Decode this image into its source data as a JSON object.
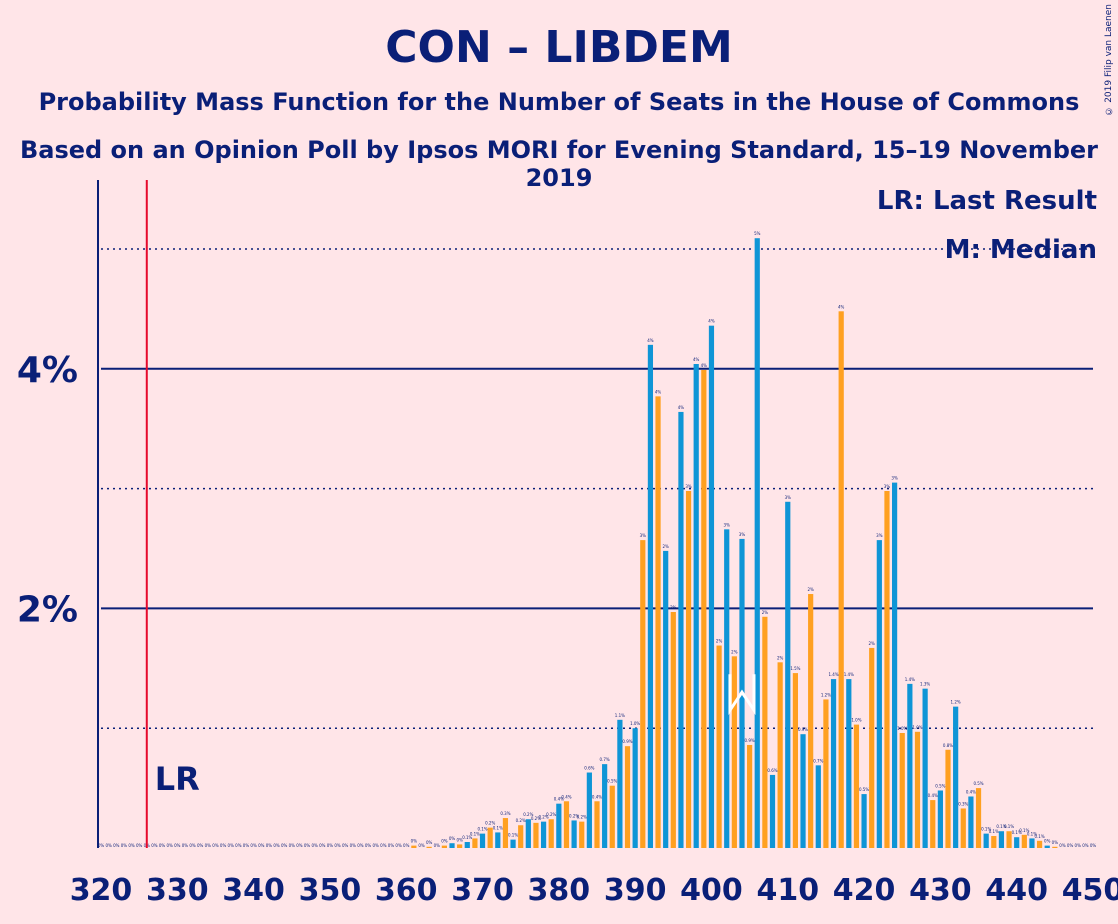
{
  "title": "CON – LIBDEM",
  "subtitle": "Probability Mass Function for the Number of Seats in the House of Commons",
  "subtitle2": "Based on an Opinion Poll by Ipsos MORI for Evening Standard, 15–19 November 2019",
  "copyright": "© 2019 Filip van Laenen",
  "legend": {
    "lr": "LR: Last Result",
    "m": "M: Median"
  },
  "colors": {
    "background": "#FFE5E8",
    "text": "#0A1F77",
    "series_a": "#0F95D6",
    "series_b": "#FFA020",
    "last_result": "#E6092C"
  },
  "chart_data": {
    "type": "bar",
    "x_range": [
      320,
      450
    ],
    "x_ticks": [
      320,
      330,
      340,
      350,
      360,
      370,
      380,
      390,
      400,
      410,
      420,
      430,
      440,
      450
    ],
    "x_tick_labels": [
      "320",
      "330",
      "340",
      "350",
      "360",
      "370",
      "380",
      "390",
      "400",
      "410",
      "420",
      "430",
      "440",
      "450"
    ],
    "y_range": [
      0,
      5.5
    ],
    "y_ticks": [
      2,
      4
    ],
    "y_tick_labels": [
      "2%",
      "4%"
    ],
    "y_minor_gridlines": [
      1,
      3,
      5
    ],
    "last_result": {
      "x": 326,
      "label": "LR"
    },
    "median": {
      "x": 404,
      "label": "M"
    },
    "bars": [
      {
        "x": 361,
        "v": 0.02
      },
      {
        "x": 363,
        "v": 0.01
      },
      {
        "x": 365,
        "v": 0.02
      },
      {
        "x": 366,
        "v": 0.04
      },
      {
        "x": 367,
        "v": 0.03
      },
      {
        "x": 368,
        "v": 0.05
      },
      {
        "x": 369,
        "v": 0.08
      },
      {
        "x": 370,
        "v": 0.12
      },
      {
        "x": 371,
        "v": 0.17
      },
      {
        "x": 372,
        "v": 0.13
      },
      {
        "x": 373,
        "v": 0.25
      },
      {
        "x": 374,
        "v": 0.07
      },
      {
        "x": 375,
        "v": 0.19
      },
      {
        "x": 376,
        "v": 0.24
      },
      {
        "x": 377,
        "v": 0.21
      },
      {
        "x": 378,
        "v": 0.22
      },
      {
        "x": 379,
        "v": 0.24
      },
      {
        "x": 380,
        "v": 0.37
      },
      {
        "x": 381,
        "v": 0.39
      },
      {
        "x": 382,
        "v": 0.23
      },
      {
        "x": 383,
        "v": 0.22
      },
      {
        "x": 384,
        "v": 0.63
      },
      {
        "x": 385,
        "v": 0.39
      },
      {
        "x": 386,
        "v": 0.7
      },
      {
        "x": 387,
        "v": 0.52
      },
      {
        "x": 388,
        "v": 1.07
      },
      {
        "x": 389,
        "v": 0.85
      },
      {
        "x": 390,
        "v": 1.0
      },
      {
        "x": 391,
        "v": 2.57
      },
      {
        "x": 392,
        "v": 4.2
      },
      {
        "x": 393,
        "v": 3.77
      },
      {
        "x": 394,
        "v": 2.48
      },
      {
        "x": 395,
        "v": 1.97
      },
      {
        "x": 396,
        "v": 3.64
      },
      {
        "x": 397,
        "v": 2.98
      },
      {
        "x": 398,
        "v": 4.04
      },
      {
        "x": 399,
        "v": 3.99
      },
      {
        "x": 400,
        "v": 4.36
      },
      {
        "x": 401,
        "v": 1.69
      },
      {
        "x": 402,
        "v": 2.66
      },
      {
        "x": 403,
        "v": 1.6
      },
      {
        "x": 404,
        "v": 2.58
      },
      {
        "x": 405,
        "v": 0.86
      },
      {
        "x": 406,
        "v": 5.09
      },
      {
        "x": 407,
        "v": 1.93
      },
      {
        "x": 408,
        "v": 0.61
      },
      {
        "x": 409,
        "v": 1.55
      },
      {
        "x": 410,
        "v": 2.89
      },
      {
        "x": 411,
        "v": 1.46
      },
      {
        "x": 412,
        "v": 0.95
      },
      {
        "x": 413,
        "v": 2.12
      },
      {
        "x": 414,
        "v": 0.69
      },
      {
        "x": 415,
        "v": 1.24
      },
      {
        "x": 416,
        "v": 1.41
      },
      {
        "x": 417,
        "v": 4.48
      },
      {
        "x": 418,
        "v": 1.41
      },
      {
        "x": 419,
        "v": 1.03
      },
      {
        "x": 420,
        "v": 0.45
      },
      {
        "x": 421,
        "v": 1.67
      },
      {
        "x": 422,
        "v": 2.57
      },
      {
        "x": 423,
        "v": 2.98
      },
      {
        "x": 424,
        "v": 3.05
      },
      {
        "x": 425,
        "v": 0.96
      },
      {
        "x": 426,
        "v": 1.37
      },
      {
        "x": 427,
        "v": 0.97
      },
      {
        "x": 428,
        "v": 1.33
      },
      {
        "x": 429,
        "v": 0.4
      },
      {
        "x": 430,
        "v": 0.48
      },
      {
        "x": 431,
        "v": 0.82
      },
      {
        "x": 432,
        "v": 1.18
      },
      {
        "x": 433,
        "v": 0.33
      },
      {
        "x": 434,
        "v": 0.43
      },
      {
        "x": 435,
        "v": 0.5
      },
      {
        "x": 436,
        "v": 0.12
      },
      {
        "x": 437,
        "v": 0.1
      },
      {
        "x": 438,
        "v": 0.14
      },
      {
        "x": 439,
        "v": 0.14
      },
      {
        "x": 440,
        "v": 0.09
      },
      {
        "x": 441,
        "v": 0.11
      },
      {
        "x": 442,
        "v": 0.08
      },
      {
        "x": 443,
        "v": 0.06
      },
      {
        "x": 444,
        "v": 0.02
      },
      {
        "x": 445,
        "v": 0.01
      }
    ],
    "bar_labels": [
      {
        "x": 361,
        "t": "0%"
      },
      {
        "x": 363,
        "t": "0%"
      },
      {
        "x": 365,
        "t": "0%"
      },
      {
        "x": 366,
        "t": "0%"
      },
      {
        "x": 367,
        "t": "0%"
      },
      {
        "x": 368,
        "t": "0.1%"
      },
      {
        "x": 369,
        "t": "0.1%"
      },
      {
        "x": 370,
        "t": "0.1%"
      },
      {
        "x": 371,
        "t": "0.2%"
      },
      {
        "x": 372,
        "t": "0.1%"
      },
      {
        "x": 373,
        "t": "0.3%"
      },
      {
        "x": 374,
        "t": "0.1%"
      },
      {
        "x": 375,
        "t": "0.2%"
      },
      {
        "x": 376,
        "t": "0.2%"
      },
      {
        "x": 377,
        "t": "0.2%"
      },
      {
        "x": 378,
        "t": "0.2%"
      },
      {
        "x": 379,
        "t": "0.2%"
      },
      {
        "x": 380,
        "t": "0.4%"
      },
      {
        "x": 381,
        "t": "0.4%"
      },
      {
        "x": 382,
        "t": "0.2%"
      },
      {
        "x": 383,
        "t": "0.2%"
      },
      {
        "x": 384,
        "t": "0.6%"
      },
      {
        "x": 385,
        "t": "0.4%"
      },
      {
        "x": 386,
        "t": "0.7%"
      },
      {
        "x": 387,
        "t": "0.5%"
      },
      {
        "x": 388,
        "t": "1.1%"
      },
      {
        "x": 389,
        "t": "0.9%"
      },
      {
        "x": 390,
        "t": "1.0%"
      },
      {
        "x": 391,
        "t": "3%"
      },
      {
        "x": 392,
        "t": "4%"
      },
      {
        "x": 393,
        "t": "4%"
      },
      {
        "x": 394,
        "t": "2%"
      },
      {
        "x": 395,
        "t": "2%"
      },
      {
        "x": 396,
        "t": "4%"
      },
      {
        "x": 397,
        "t": "3%"
      },
      {
        "x": 398,
        "t": "4%"
      },
      {
        "x": 399,
        "t": "4%"
      },
      {
        "x": 400,
        "t": "4%"
      },
      {
        "x": 401,
        "t": "2%"
      },
      {
        "x": 402,
        "t": "3%"
      },
      {
        "x": 403,
        "t": "2%"
      },
      {
        "x": 404,
        "t": "3%"
      },
      {
        "x": 405,
        "t": "0.9%"
      },
      {
        "x": 406,
        "t": "5%"
      },
      {
        "x": 407,
        "t": "2%"
      },
      {
        "x": 408,
        "t": "0.6%"
      },
      {
        "x": 409,
        "t": "2%"
      },
      {
        "x": 410,
        "t": "3%"
      },
      {
        "x": 411,
        "t": "1.5%"
      },
      {
        "x": 412,
        "t": "0.9%"
      },
      {
        "x": 413,
        "t": "2%"
      },
      {
        "x": 414,
        "t": "0.7%"
      },
      {
        "x": 415,
        "t": "1.2%"
      },
      {
        "x": 416,
        "t": "1.4%"
      },
      {
        "x": 417,
        "t": "4%"
      },
      {
        "x": 418,
        "t": "1.4%"
      },
      {
        "x": 419,
        "t": "1.0%"
      },
      {
        "x": 420,
        "t": "0.5%"
      },
      {
        "x": 421,
        "t": "2%"
      },
      {
        "x": 422,
        "t": "3%"
      },
      {
        "x": 423,
        "t": "3%"
      },
      {
        "x": 424,
        "t": "3%"
      },
      {
        "x": 425,
        "t": "1.0%"
      },
      {
        "x": 426,
        "t": "1.4%"
      },
      {
        "x": 427,
        "t": "1.0%"
      },
      {
        "x": 428,
        "t": "1.3%"
      },
      {
        "x": 429,
        "t": "0.4%"
      },
      {
        "x": 430,
        "t": "0.5%"
      },
      {
        "x": 431,
        "t": "0.8%"
      },
      {
        "x": 432,
        "t": "1.2%"
      },
      {
        "x": 433,
        "t": "0.3%"
      },
      {
        "x": 434,
        "t": "0.4%"
      },
      {
        "x": 435,
        "t": "0.5%"
      },
      {
        "x": 436,
        "t": "0.1%"
      },
      {
        "x": 437,
        "t": "0.1%"
      },
      {
        "x": 438,
        "t": "0.1%"
      },
      {
        "x": 439,
        "t": "0.1%"
      },
      {
        "x": 440,
        "t": "0.1%"
      },
      {
        "x": 441,
        "t": "0.1%"
      },
      {
        "x": 442,
        "t": "0.1%"
      },
      {
        "x": 443,
        "t": "0.1%"
      },
      {
        "x": 444,
        "t": "0%"
      },
      {
        "x": 445,
        "t": "0%"
      }
    ],
    "zero_label": "0%"
  }
}
